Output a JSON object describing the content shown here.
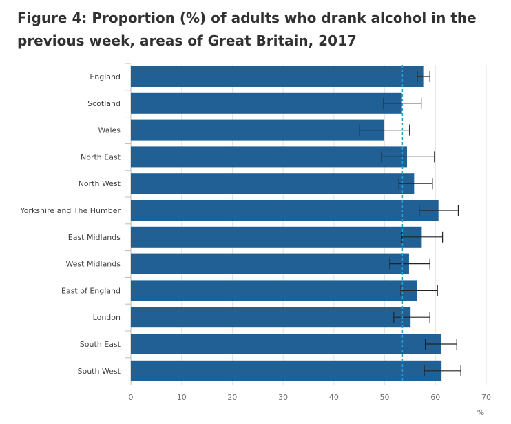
{
  "figure": {
    "title": "Figure 4: Proportion (%) of adults who drank alcohol in the previous week, areas of Great Britain, 2017"
  },
  "chart_data": {
    "type": "bar",
    "orientation": "horizontal",
    "title": "Figure 4: Proportion (%) of adults who drank alcohol in the previous week, areas of Great Britain, 2017",
    "xlabel": "%",
    "ylabel": "",
    "xlim": [
      0,
      70
    ],
    "xticks": [
      0,
      10,
      20,
      30,
      40,
      50,
      60,
      70
    ],
    "grid": "vertical",
    "legend": "none",
    "categories": [
      "England",
      "Scotland",
      "Wales",
      "North East",
      "North West",
      "Yorkshire and The Humber",
      "East Midlands",
      "West Midlands",
      "East of England",
      "London",
      "South East",
      "South West"
    ],
    "values": [
      57.6,
      53.4,
      49.8,
      54.4,
      55.8,
      60.6,
      57.3,
      54.8,
      56.4,
      55.1,
      61.1,
      61.2
    ],
    "error_low": [
      56.4,
      49.8,
      45.0,
      49.4,
      52.8,
      56.8,
      53.4,
      51.0,
      53.2,
      51.8,
      58.0,
      57.8
    ],
    "error_high": [
      58.9,
      57.2,
      54.9,
      59.8,
      59.4,
      64.5,
      61.4,
      58.9,
      60.4,
      58.9,
      64.2,
      65.0
    ],
    "reference_line": 53.5,
    "colors": {
      "bar": "#206095",
      "error_bar": "#222222",
      "reference_line": "#27a0cc",
      "gridline": "#e2e2e3",
      "axis": "#bcbcbd"
    }
  }
}
